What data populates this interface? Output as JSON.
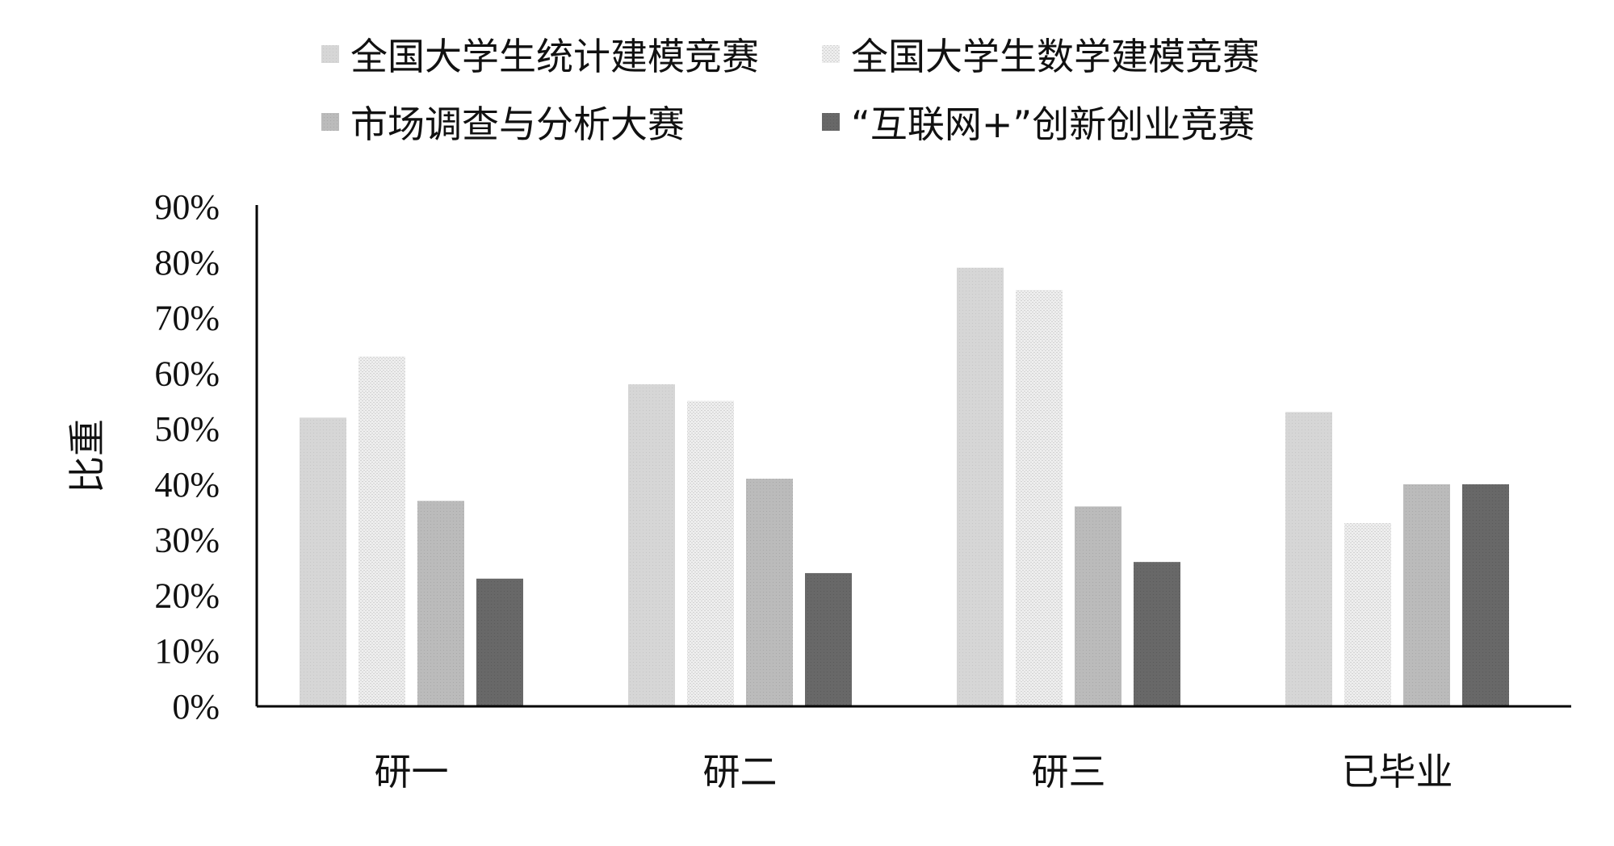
{
  "chart_data": {
    "type": "bar",
    "title": "",
    "xlabel": "",
    "ylabel": "比重",
    "ylim": [
      0,
      0.9
    ],
    "y_ticks": [
      "0%",
      "10%",
      "20%",
      "30%",
      "40%",
      "50%",
      "60%",
      "70%",
      "80%",
      "90%"
    ],
    "grid": false,
    "legend_position": "top",
    "categories": [
      "研一",
      "研二",
      "研三",
      "已毕业"
    ],
    "series": [
      {
        "name": "全国大学生统计建模竞赛",
        "color": "#d6d6d6",
        "pattern": "dots",
        "values": [
          0.52,
          0.58,
          0.79,
          0.53
        ]
      },
      {
        "name": "全国大学生数学建模竞赛",
        "color": "#ececec",
        "pattern": "fine-dots",
        "values": [
          0.63,
          0.55,
          0.75,
          0.33
        ]
      },
      {
        "name": "市场调查与分析大赛",
        "color": "#b9b9b9",
        "pattern": "dots",
        "values": [
          0.37,
          0.41,
          0.36,
          0.4
        ]
      },
      {
        "name": "“互联网+”创新创业竞赛",
        "color": "#686868",
        "pattern": "solid",
        "values": [
          0.23,
          0.24,
          0.26,
          0.4
        ]
      }
    ]
  }
}
